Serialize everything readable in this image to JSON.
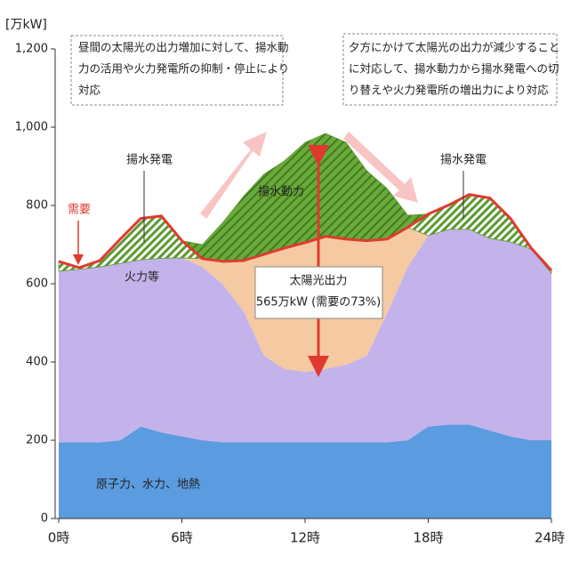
{
  "chart_data": {
    "type": "stacked_area",
    "y_unit_label": "[万kW]",
    "x": [
      0,
      1,
      2,
      3,
      4,
      5,
      6,
      7,
      8,
      9,
      10,
      11,
      12,
      13,
      14,
      15,
      16,
      17,
      18,
      19,
      20,
      21,
      22,
      23,
      24
    ],
    "xlim": [
      0,
      24
    ],
    "xticks": [
      {
        "value": 0,
        "label": "0時"
      },
      {
        "value": 6,
        "label": "6時"
      },
      {
        "value": 12,
        "label": "12時"
      },
      {
        "value": 18,
        "label": "18時"
      },
      {
        "value": 24,
        "label": "24時"
      }
    ],
    "ylim": [
      0,
      1200
    ],
    "yticks": [
      0,
      200,
      400,
      600,
      800,
      {
        "value": 1000,
        "label": "1,000"
      },
      {
        "value": 1200,
        "label": "1,200"
      }
    ],
    "series": [
      {
        "name": "原子力、水力、地熱",
        "color": "#5b9be0",
        "values": [
          195,
          195,
          195,
          200,
          235,
          220,
          210,
          200,
          195,
          195,
          195,
          195,
          195,
          195,
          195,
          195,
          195,
          200,
          235,
          240,
          240,
          225,
          210,
          200,
          200
        ]
      },
      {
        "name": "火力等",
        "color": "#c4b2ea",
        "values": [
          437,
          442,
          448,
          452,
          426,
          445,
          456,
          443,
          403,
          335,
          221,
          187,
          180,
          187,
          198,
          221,
          330,
          443,
          488,
          499,
          499,
          491,
          497,
          489,
          427
        ]
      },
      {
        "name": "太陽光出力",
        "color": "#f5c9a2",
        "values": [
          0,
          0,
          0,
          0,
          0,
          0,
          0,
          21,
          59,
          129,
          259,
          309,
          330,
          339,
          321,
          294,
          189,
          101,
          0,
          0,
          0,
          0,
          0,
          0,
          0
        ]
      },
      {
        "name": "揚水発電",
        "color": "#5b9a30",
        "hatch": true,
        "values": [
          25,
          4,
          16,
          62,
          106,
          108,
          44,
          0,
          0,
          0,
          0,
          0,
          0,
          0,
          0,
          0,
          0,
          0,
          55,
          62,
          89,
          103,
          60,
          3,
          7
        ]
      },
      {
        "name": "揚水動力",
        "color": "#5b9a30",
        "values": [
          0,
          0,
          0,
          0,
          0,
          0,
          0,
          36,
          100,
          164,
          205,
          223,
          256,
          263,
          247,
          179,
          129,
          31,
          0,
          0,
          0,
          0,
          0,
          0,
          0
        ]
      }
    ],
    "demand": {
      "name": "需要",
      "color": "#e03a2e",
      "values": [
        657,
        641,
        659,
        714,
        767,
        773,
        710,
        664,
        657,
        659,
        675,
        691,
        705,
        721,
        714,
        710,
        714,
        744,
        778,
        801,
        828,
        819,
        767,
        692,
        634
      ]
    },
    "annotations": [
      "昼間の太陽光の出力増加に対して、揚水動",
      "力の活用や火力発電所の抑制・停止により",
      "対応",
      "夕方にかけて太陽光の出力が減少すること",
      "に対応して、揚水動力から揚水発電への切",
      "り替えや火力発電所の増出力により対応"
    ],
    "solar_callout": [
      "565万kW (需要の73%)"
    ]
  }
}
